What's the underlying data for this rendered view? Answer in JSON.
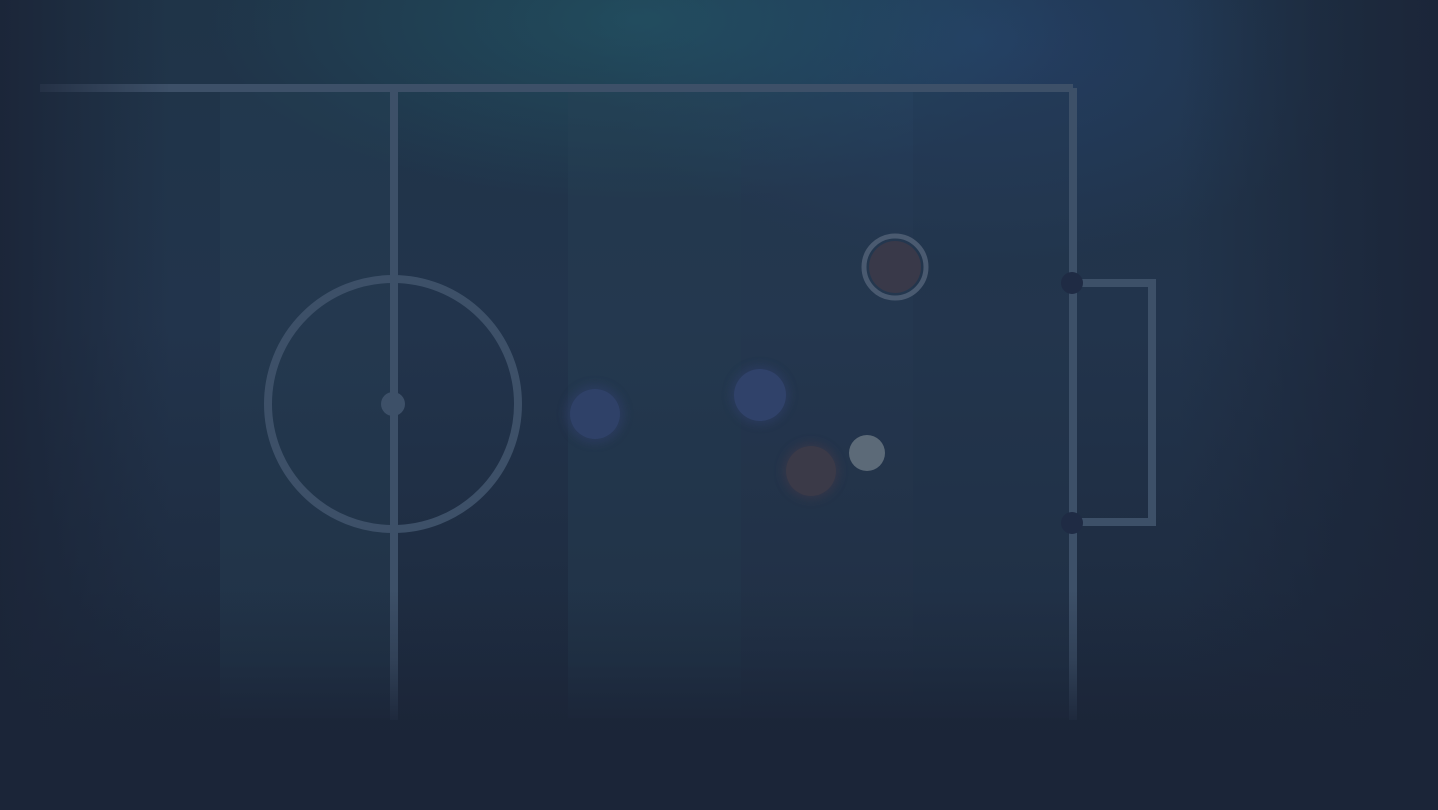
{
  "scene": {
    "description_label": "",
    "colors": {
      "background_top": "#1f3448",
      "background_bottom": "#1b2537",
      "pitch_line": "#3d5068",
      "stripe_light": "#2a4356",
      "team_a_player": "#2f4168",
      "team_b_player": "#3a3948",
      "ball": "#5c6a78",
      "goal_post": "#1f2b44"
    }
  },
  "pitch": {
    "markings": [
      "halfway-line",
      "center-circle",
      "center-spot",
      "touchline",
      "goal-line",
      "goal-box",
      "goal-posts"
    ]
  },
  "players": [
    {
      "id": "team-a-player-1",
      "team": "team-a"
    },
    {
      "id": "team-a-player-2",
      "team": "team-a"
    },
    {
      "id": "team-b-player-1",
      "team": "team-b",
      "highlighted": true
    },
    {
      "id": "team-b-player-2",
      "team": "team-b"
    }
  ],
  "ball": {
    "id": "ball"
  }
}
